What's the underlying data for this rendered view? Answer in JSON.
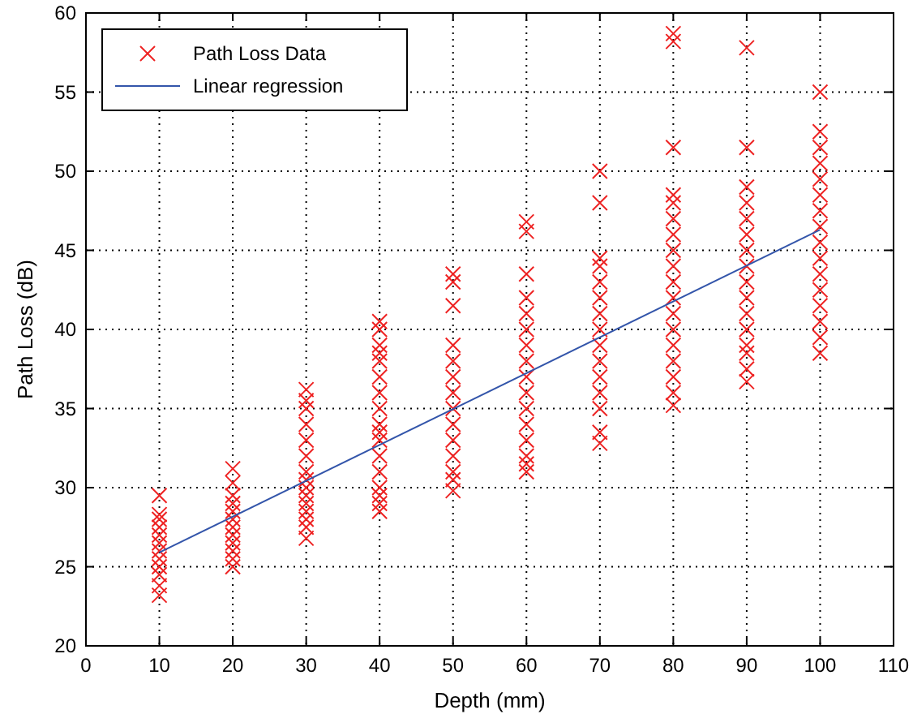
{
  "chart_data": {
    "type": "scatter",
    "xlabel": "Depth (mm)",
    "ylabel": "Path Loss (dB)",
    "xlim": [
      0,
      110
    ],
    "xticks": [
      0,
      10,
      20,
      30,
      40,
      50,
      60,
      70,
      80,
      90,
      100,
      110
    ],
    "ylim": [
      20,
      60
    ],
    "yticks": [
      20,
      25,
      30,
      35,
      40,
      45,
      50,
      55,
      60
    ],
    "grid": true,
    "legend": "top left",
    "series": [
      {
        "name": "Path Loss Data",
        "color": "#ee2222",
        "marker": "cross",
        "x": [
          10,
          10,
          10,
          10,
          10,
          10,
          10,
          10,
          10,
          10,
          10,
          10,
          20,
          20,
          20,
          20,
          20,
          20,
          20,
          20,
          20,
          20,
          20,
          20,
          30,
          30,
          30,
          30,
          30,
          30,
          30,
          30,
          30,
          30,
          30,
          30,
          30,
          30,
          30,
          40,
          40,
          40,
          40,
          40,
          40,
          40,
          40,
          40,
          40,
          40,
          40,
          40,
          40,
          40,
          40,
          40,
          50,
          50,
          50,
          50,
          50,
          50,
          50,
          50,
          50,
          50,
          50,
          50,
          50,
          50,
          60,
          60,
          60,
          60,
          60,
          60,
          60,
          60,
          60,
          60,
          60,
          60,
          60,
          60,
          60,
          60,
          70,
          70,
          70,
          70,
          70,
          70,
          70,
          70,
          70,
          70,
          70,
          70,
          70,
          70,
          70,
          80,
          80,
          80,
          80,
          80,
          80,
          80,
          80,
          80,
          80,
          80,
          80,
          80,
          80,
          80,
          80,
          80,
          80,
          90,
          90,
          90,
          90,
          90,
          90,
          90,
          90,
          90,
          90,
          90,
          90,
          90,
          90,
          90,
          90,
          100,
          100,
          100,
          100,
          100,
          100,
          100,
          100,
          100,
          100,
          100,
          100,
          100,
          100,
          100,
          100
        ],
        "values": [
          23.2,
          23.8,
          24.5,
          25,
          25.5,
          26,
          26.5,
          27,
          27.5,
          28,
          28.3,
          29.5,
          25,
          25.5,
          26,
          26.5,
          27,
          27.5,
          28,
          28.5,
          29,
          29.5,
          30.3,
          31.2,
          26.8,
          27.5,
          28,
          28.5,
          29,
          29.5,
          30,
          30.5,
          31,
          32,
          33,
          34,
          35,
          35.5,
          36.2,
          28.5,
          29,
          29.5,
          30,
          31,
          32,
          33,
          33.5,
          34,
          35,
          36,
          37,
          38,
          38.5,
          39,
          40,
          40.5,
          29.8,
          30.5,
          31,
          32,
          33,
          34,
          35,
          36,
          37,
          38,
          39,
          41.5,
          43,
          43.5,
          31,
          31.5,
          32,
          33,
          34,
          35,
          36,
          37,
          38,
          39,
          40,
          41,
          42,
          43.5,
          46.2,
          46.8,
          32.8,
          33.5,
          35,
          36,
          37,
          38,
          39,
          40,
          41,
          42,
          43,
          44,
          44.5,
          48,
          50,
          35.2,
          36,
          37,
          38,
          39,
          40,
          41,
          42,
          43,
          44,
          45,
          46,
          47,
          48,
          48.5,
          51.5,
          58.2,
          58.7,
          36.7,
          37.5,
          38.5,
          39,
          40,
          41,
          42,
          43,
          44,
          45,
          46,
          47,
          48,
          49,
          51.5,
          57.8,
          38.5,
          39.5,
          40.5,
          41.5,
          42.5,
          43.5,
          44.5,
          45.5,
          46.5,
          47.5,
          48.5,
          49.5,
          50.5,
          51.5,
          52.5,
          55
        ]
      },
      {
        "name": "Linear regression",
        "type": "line",
        "color": "#3355aa",
        "marker": "none",
        "x": [
          10,
          100
        ],
        "values": [
          25.9,
          46.3
        ]
      }
    ]
  }
}
